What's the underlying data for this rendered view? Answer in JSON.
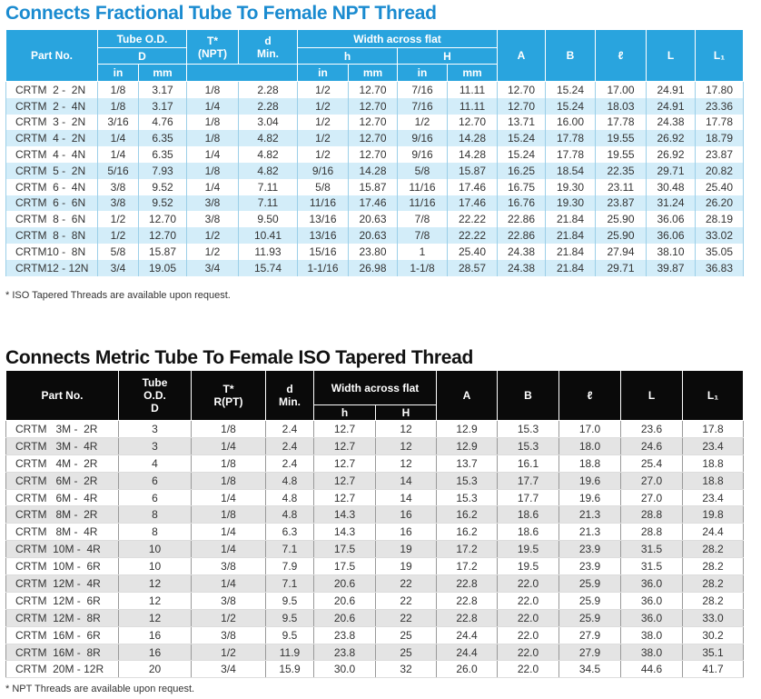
{
  "table1": {
    "title": "Connects Fractional Tube To Female NPT Thread",
    "header": {
      "part_no": "Part No.",
      "tube_od": "Tube O.D.",
      "tube_od_sub": "D",
      "t": "T*\n(NPT)",
      "d": "d\nMin.",
      "width": "Width across flat",
      "h": "h",
      "H": "H",
      "A": "A",
      "B": "B",
      "l": "ℓ",
      "L": "L",
      "L1": "L₁",
      "units": [
        "in",
        "mm",
        "in",
        "mm",
        "in",
        "mm"
      ]
    },
    "rows": [
      [
        "CRTM  2 -  2N",
        "1/8",
        "3.17",
        "1/8",
        "2.28",
        "1/2",
        "12.70",
        "7/16",
        "11.11",
        "12.70",
        "15.24",
        "17.00",
        "24.91",
        "17.80"
      ],
      [
        "CRTM  2 -  4N",
        "1/8",
        "3.17",
        "1/4",
        "2.28",
        "1/2",
        "12.70",
        "7/16",
        "11.11",
        "12.70",
        "15.24",
        "18.03",
        "24.91",
        "23.36"
      ],
      [
        "CRTM  3 -  2N",
        "3/16",
        "4.76",
        "1/8",
        "3.04",
        "1/2",
        "12.70",
        "1/2",
        "12.70",
        "13.71",
        "16.00",
        "17.78",
        "24.38",
        "17.78"
      ],
      [
        "CRTM  4 -  2N",
        "1/4",
        "6.35",
        "1/8",
        "4.82",
        "1/2",
        "12.70",
        "9/16",
        "14.28",
        "15.24",
        "17.78",
        "19.55",
        "26.92",
        "18.79"
      ],
      [
        "CRTM  4 -  4N",
        "1/4",
        "6.35",
        "1/4",
        "4.82",
        "1/2",
        "12.70",
        "9/16",
        "14.28",
        "15.24",
        "17.78",
        "19.55",
        "26.92",
        "23.87"
      ],
      [
        "CRTM  5 -  2N",
        "5/16",
        "7.93",
        "1/8",
        "4.82",
        "9/16",
        "14.28",
        "5/8",
        "15.87",
        "16.25",
        "18.54",
        "22.35",
        "29.71",
        "20.82"
      ],
      [
        "CRTM  6 -  4N",
        "3/8",
        "9.52",
        "1/4",
        "7.11",
        "5/8",
        "15.87",
        "11/16",
        "17.46",
        "16.75",
        "19.30",
        "23.11",
        "30.48",
        "25.40"
      ],
      [
        "CRTM  6 -  6N",
        "3/8",
        "9.52",
        "3/8",
        "7.11",
        "11/16",
        "17.46",
        "11/16",
        "17.46",
        "16.76",
        "19.30",
        "23.87",
        "31.24",
        "26.20"
      ],
      [
        "CRTM  8 -  6N",
        "1/2",
        "12.70",
        "3/8",
        "9.50",
        "13/16",
        "20.63",
        "7/8",
        "22.22",
        "22.86",
        "21.84",
        "25.90",
        "36.06",
        "28.19"
      ],
      [
        "CRTM  8 -  8N",
        "1/2",
        "12.70",
        "1/2",
        "10.41",
        "13/16",
        "20.63",
        "7/8",
        "22.22",
        "22.86",
        "21.84",
        "25.90",
        "36.06",
        "33.02"
      ],
      [
        "CRTM10 -  8N",
        "5/8",
        "15.87",
        "1/2",
        "11.93",
        "15/16",
        "23.80",
        "1",
        "25.40",
        "24.38",
        "21.84",
        "27.94",
        "38.10",
        "35.05"
      ],
      [
        "CRTM12 - 12N",
        "3/4",
        "19.05",
        "3/4",
        "15.74",
        "1-1/16",
        "26.98",
        "1-1/8",
        "28.57",
        "24.38",
        "21.84",
        "29.71",
        "39.87",
        "36.83"
      ]
    ],
    "note": "* ISO Tapered Threads are available upon request."
  },
  "table2": {
    "title": "Connects Metric Tube To Female ISO Tapered Thread",
    "header": {
      "part_no": "Part No.",
      "tube_od": "Tube\nO.D.\nD",
      "t": "T*\nR(PT)",
      "d": "d\nMin.",
      "width": "Width across flat",
      "h": "h",
      "H": "H",
      "A": "A",
      "B": "B",
      "l": "ℓ",
      "L": "L",
      "L1": "L₁"
    },
    "rows": [
      [
        "CRTM   3M -  2R",
        "3",
        "1/8",
        "2.4",
        "12.7",
        "12",
        "12.9",
        "15.3",
        "17.0",
        "23.6",
        "17.8"
      ],
      [
        "CRTM   3M -  4R",
        "3",
        "1/4",
        "2.4",
        "12.7",
        "12",
        "12.9",
        "15.3",
        "18.0",
        "24.6",
        "23.4"
      ],
      [
        "CRTM   4M -  2R",
        "4",
        "1/8",
        "2.4",
        "12.7",
        "12",
        "13.7",
        "16.1",
        "18.8",
        "25.4",
        "18.8"
      ],
      [
        "CRTM   6M -  2R",
        "6",
        "1/8",
        "4.8",
        "12.7",
        "14",
        "15.3",
        "17.7",
        "19.6",
        "27.0",
        "18.8"
      ],
      [
        "CRTM   6M -  4R",
        "6",
        "1/4",
        "4.8",
        "12.7",
        "14",
        "15.3",
        "17.7",
        "19.6",
        "27.0",
        "23.4"
      ],
      [
        "CRTM   8M -  2R",
        "8",
        "1/8",
        "4.8",
        "14.3",
        "16",
        "16.2",
        "18.6",
        "21.3",
        "28.8",
        "19.8"
      ],
      [
        "CRTM   8M -  4R",
        "8",
        "1/4",
        "6.3",
        "14.3",
        "16",
        "16.2",
        "18.6",
        "21.3",
        "28.8",
        "24.4"
      ],
      [
        "CRTM  10M -  4R",
        "10",
        "1/4",
        "7.1",
        "17.5",
        "19",
        "17.2",
        "19.5",
        "23.9",
        "31.5",
        "28.2"
      ],
      [
        "CRTM  10M -  6R",
        "10",
        "3/8",
        "7.9",
        "17.5",
        "19",
        "17.2",
        "19.5",
        "23.9",
        "31.5",
        "28.2"
      ],
      [
        "CRTM  12M -  4R",
        "12",
        "1/4",
        "7.1",
        "20.6",
        "22",
        "22.8",
        "22.0",
        "25.9",
        "36.0",
        "28.2"
      ],
      [
        "CRTM  12M -  6R",
        "12",
        "3/8",
        "9.5",
        "20.6",
        "22",
        "22.8",
        "22.0",
        "25.9",
        "36.0",
        "28.2"
      ],
      [
        "CRTM  12M -  8R",
        "12",
        "1/2",
        "9.5",
        "20.6",
        "22",
        "22.8",
        "22.0",
        "25.9",
        "36.0",
        "33.0"
      ],
      [
        "CRTM  16M -  6R",
        "16",
        "3/8",
        "9.5",
        "23.8",
        "25",
        "24.4",
        "22.0",
        "27.9",
        "38.0",
        "30.2"
      ],
      [
        "CRTM  16M -  8R",
        "16",
        "1/2",
        "11.9",
        "23.8",
        "25",
        "24.4",
        "22.0",
        "27.9",
        "38.0",
        "35.1"
      ],
      [
        "CRTM  20M - 12R",
        "20",
        "3/4",
        "15.9",
        "30.0",
        "32",
        "26.0",
        "22.0",
        "34.5",
        "44.6",
        "41.7"
      ]
    ],
    "note": "* NPT Threads are available upon request."
  }
}
